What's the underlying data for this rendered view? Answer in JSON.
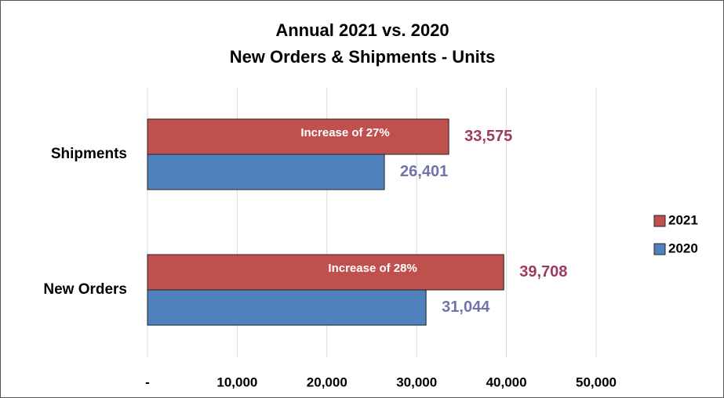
{
  "chart_data": {
    "type": "bar",
    "orientation": "horizontal",
    "title": [
      "Annual 2021 vs. 2020",
      "New Orders & Shipments - Units"
    ],
    "categories": [
      "Shipments",
      "New Orders"
    ],
    "series": [
      {
        "name": "2021",
        "color": "#c0504d",
        "label_color": "#9e3a62",
        "values": [
          33575,
          39708
        ],
        "value_labels": [
          "33,575",
          "39,708"
        ]
      },
      {
        "name": "2020",
        "color": "#4f81bd",
        "label_color": "#6f74aa",
        "values": [
          26401,
          31044
        ],
        "value_labels": [
          "26,401",
          "31,044"
        ]
      }
    ],
    "annotations": [
      "Increase of 27%",
      "Increase of 28%"
    ],
    "xlim": [
      0,
      50000
    ],
    "xticks": [
      {
        "value": 0,
        "label": "-"
      },
      {
        "value": 10000,
        "label": "10,000"
      },
      {
        "value": 20000,
        "label": "20,000"
      },
      {
        "value": 30000,
        "label": "30,000"
      },
      {
        "value": 40000,
        "label": "40,000"
      },
      {
        "value": 50000,
        "label": "50,000"
      }
    ],
    "grid": true,
    "legend": "right"
  }
}
